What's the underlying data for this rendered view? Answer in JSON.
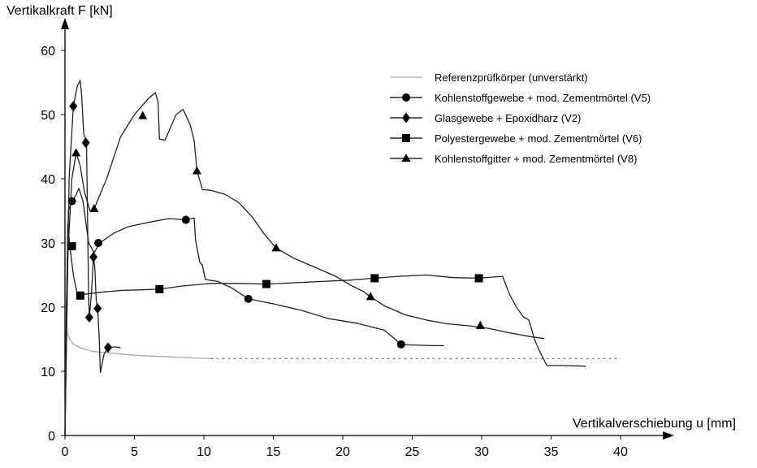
{
  "chart_data": {
    "type": "line",
    "xlabel": "Vertikalverschiebung u [mm]",
    "ylabel": "Vertikalkraft F [kN]",
    "xlim": [
      0,
      40
    ],
    "ylim": [
      0,
      60
    ],
    "x_ticks": [
      0,
      5,
      10,
      15,
      20,
      25,
      30,
      35,
      40
    ],
    "y_ticks": [
      0,
      10,
      20,
      30,
      40,
      50,
      60
    ],
    "grid": false,
    "legend_position": "top-right",
    "series": [
      {
        "name": "Referenzprüfkörper (unverstärkt)",
        "marker": "none",
        "color": "#aaaaaa",
        "points": [
          [
            0,
            0
          ],
          [
            0.1,
            16.5
          ],
          [
            0.3,
            15.2
          ],
          [
            0.6,
            14.2
          ],
          [
            1.2,
            13.6
          ],
          [
            2,
            13.1
          ],
          [
            3.5,
            12.8
          ],
          [
            5,
            12.5
          ],
          [
            7,
            12.3
          ],
          [
            9,
            12.1
          ],
          [
            10.5,
            12.0
          ]
        ],
        "extension": [
          [
            10.5,
            12.0
          ],
          [
            40,
            12.0
          ]
        ]
      },
      {
        "name": "Kohlenstoffgewebe + mod. Zementmörtel (V5)",
        "marker": "circle",
        "color": "#222222",
        "points": [
          [
            0,
            0
          ],
          [
            0.1,
            20
          ],
          [
            0.25,
            35
          ],
          [
            0.5,
            36.5
          ],
          [
            0.8,
            37.5
          ],
          [
            1.0,
            38.5
          ],
          [
            1.3,
            36.5
          ],
          [
            1.7,
            30
          ],
          [
            2.1,
            28.5
          ],
          [
            2.5,
            30
          ],
          [
            3.5,
            31.5
          ],
          [
            4.5,
            32.5
          ],
          [
            6,
            33.2
          ],
          [
            7.5,
            33.8
          ],
          [
            8.7,
            33.6
          ],
          [
            9.3,
            33.9
          ],
          [
            9.4,
            30.5
          ],
          [
            9.7,
            27
          ],
          [
            9.9,
            26.5
          ],
          [
            10.1,
            24.3
          ],
          [
            11,
            24
          ],
          [
            12,
            23
          ],
          [
            13.2,
            21.3
          ],
          [
            15,
            20.5
          ],
          [
            17,
            19.5
          ],
          [
            19,
            18.2
          ],
          [
            21,
            17.5
          ],
          [
            23,
            16.4
          ],
          [
            24.2,
            14.2
          ],
          [
            25,
            14.1
          ],
          [
            26.5,
            14.0
          ],
          [
            27.3,
            14.0
          ]
        ],
        "marker_points": [
          [
            0.5,
            36.5
          ],
          [
            2.4,
            30
          ],
          [
            8.7,
            33.6
          ],
          [
            13.2,
            21.3
          ],
          [
            24.2,
            14.2
          ]
        ]
      },
      {
        "name": "Glasgewebe + Epoxidharz (V2)",
        "marker": "diamond",
        "color": "#222222",
        "points": [
          [
            0,
            0
          ],
          [
            0.15,
            20
          ],
          [
            0.3,
            40
          ],
          [
            0.6,
            51.3
          ],
          [
            0.9,
            54.5
          ],
          [
            1.1,
            55.3
          ],
          [
            1.2,
            53
          ],
          [
            1.35,
            47
          ],
          [
            1.55,
            45.6
          ],
          [
            1.65,
            30
          ],
          [
            1.7,
            22
          ],
          [
            1.75,
            18.4
          ],
          [
            1.9,
            22
          ],
          [
            2.05,
            27.8
          ],
          [
            2.15,
            26
          ],
          [
            2.25,
            21
          ],
          [
            2.35,
            19.8
          ],
          [
            2.45,
            16
          ],
          [
            2.55,
            9.8
          ],
          [
            2.8,
            12.6
          ],
          [
            3.1,
            13.7
          ],
          [
            3.6,
            13.8
          ],
          [
            4.0,
            13.7
          ]
        ],
        "marker_points": [
          [
            0.6,
            51.3
          ],
          [
            1.5,
            45.6
          ],
          [
            1.75,
            18.4
          ],
          [
            2.05,
            27.8
          ],
          [
            2.35,
            19.8
          ],
          [
            3.1,
            13.7
          ]
        ]
      },
      {
        "name": "Polyestergewebe + mod. Zementmörtel (V6)",
        "marker": "square",
        "color": "#222222",
        "points": [
          [
            0,
            0
          ],
          [
            0.1,
            18
          ],
          [
            0.2,
            33
          ],
          [
            0.35,
            29.5
          ],
          [
            0.6,
            25
          ],
          [
            0.9,
            21.8
          ],
          [
            1.4,
            22
          ],
          [
            2.5,
            22.3
          ],
          [
            4,
            22.6
          ],
          [
            5.5,
            22.7
          ],
          [
            6.8,
            22.8
          ],
          [
            8.5,
            23.3
          ],
          [
            10.5,
            23.7
          ],
          [
            12.5,
            23.7
          ],
          [
            14.5,
            23.6
          ],
          [
            16.5,
            23.8
          ],
          [
            18.5,
            24.0
          ],
          [
            20.5,
            24.2
          ],
          [
            22.3,
            24.5
          ],
          [
            24,
            24.8
          ],
          [
            26,
            25.0
          ],
          [
            28,
            24.6
          ],
          [
            29.8,
            24.5
          ],
          [
            31.5,
            24.8
          ],
          [
            32.0,
            22
          ],
          [
            32.5,
            20
          ],
          [
            33,
            18.5
          ],
          [
            33.4,
            18
          ],
          [
            33.8,
            15
          ],
          [
            34.2,
            13
          ],
          [
            34.7,
            10.9
          ],
          [
            36,
            10.9
          ],
          [
            37.5,
            10.8
          ]
        ],
        "marker_points": [
          [
            0.5,
            29.5
          ],
          [
            1.1,
            21.8
          ],
          [
            6.8,
            22.8
          ],
          [
            14.5,
            23.6
          ],
          [
            22.3,
            24.5
          ],
          [
            29.8,
            24.5
          ]
        ]
      },
      {
        "name": "Kohlenstoffgitter + mod. Zementmörtel (V8)",
        "marker": "triangle",
        "color": "#222222",
        "points": [
          [
            0,
            0
          ],
          [
            0.2,
            28
          ],
          [
            0.5,
            40
          ],
          [
            0.8,
            44
          ],
          [
            1.1,
            42
          ],
          [
            1.4,
            38
          ],
          [
            1.8,
            35
          ],
          [
            2.1,
            35.3
          ],
          [
            3,
            40
          ],
          [
            4,
            46.5
          ],
          [
            5,
            50
          ],
          [
            6,
            52.5
          ],
          [
            6.5,
            53.4
          ],
          [
            6.7,
            52
          ],
          [
            6.8,
            46.2
          ],
          [
            7.2,
            46
          ],
          [
            7.5,
            47.5
          ],
          [
            8,
            50
          ],
          [
            8.5,
            50.8
          ],
          [
            9,
            48.5
          ],
          [
            9.3,
            46
          ],
          [
            9.5,
            41.2
          ],
          [
            9.9,
            38.3
          ],
          [
            10.5,
            38.2
          ],
          [
            11.5,
            37.6
          ],
          [
            12.5,
            36.3
          ],
          [
            13.5,
            34
          ],
          [
            14.3,
            31.5
          ],
          [
            15.2,
            29.2
          ],
          [
            16.5,
            27.6
          ],
          [
            18,
            26.2
          ],
          [
            19.5,
            24.8
          ],
          [
            20.5,
            23.5
          ],
          [
            21.5,
            22.4
          ],
          [
            22,
            21.6
          ],
          [
            23,
            20.2
          ],
          [
            24.5,
            18.8
          ],
          [
            26,
            18.0
          ],
          [
            27.5,
            17.4
          ],
          [
            29,
            17.1
          ],
          [
            30.5,
            16.7
          ],
          [
            32,
            16.0
          ],
          [
            33.5,
            15.4
          ],
          [
            34.5,
            15.1
          ]
        ],
        "marker_points": [
          [
            0.8,
            44
          ],
          [
            2.1,
            35.3
          ],
          [
            5.6,
            49.8
          ],
          [
            9.5,
            41.2
          ],
          [
            15.2,
            29.2
          ],
          [
            22,
            21.6
          ],
          [
            29.9,
            17.1
          ]
        ]
      }
    ]
  }
}
